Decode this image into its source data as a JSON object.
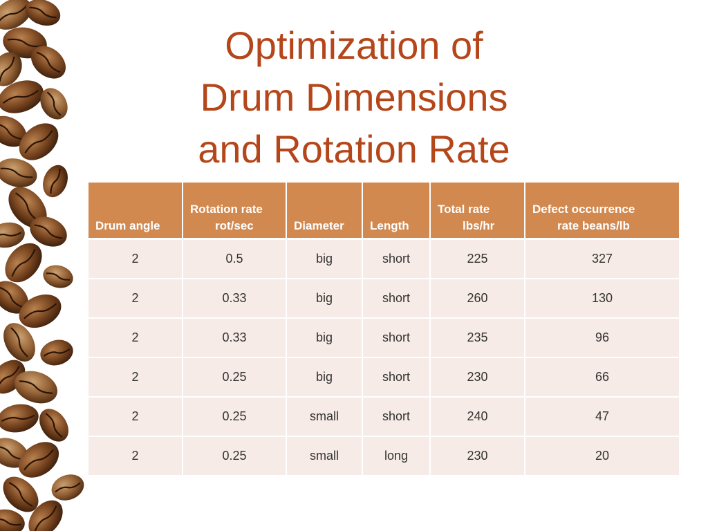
{
  "title_lines": [
    "Optimization of",
    "Drum Dimensions",
    "and Rotation Rate"
  ],
  "colors": {
    "title": "#b5461a",
    "header_bg": "#d2894f",
    "row_bg": "#f6ebe6"
  },
  "table": {
    "headers": [
      {
        "line1": "",
        "line2": "Drum angle"
      },
      {
        "line1": "Rotation rate",
        "line2": "rot/sec"
      },
      {
        "line1": "",
        "line2": "Diameter"
      },
      {
        "line1": "",
        "line2": "Length"
      },
      {
        "line1": "Total rate",
        "line2": "lbs/hr"
      },
      {
        "line1": "Defect occurrence",
        "line2": "rate beans/lb"
      }
    ],
    "rows": [
      [
        "2",
        "0.5",
        "big",
        "short",
        "225",
        "327"
      ],
      [
        "2",
        "0.33",
        "big",
        "short",
        "260",
        "130"
      ],
      [
        "2",
        "0.33",
        "big",
        "short",
        "235",
        "96"
      ],
      [
        "2",
        "0.25",
        "big",
        "short",
        "230",
        "66"
      ],
      [
        "2",
        "0.25",
        "small",
        "short",
        "240",
        "47"
      ],
      [
        "2",
        "0.25",
        "small",
        "long",
        "230",
        "20"
      ]
    ]
  }
}
